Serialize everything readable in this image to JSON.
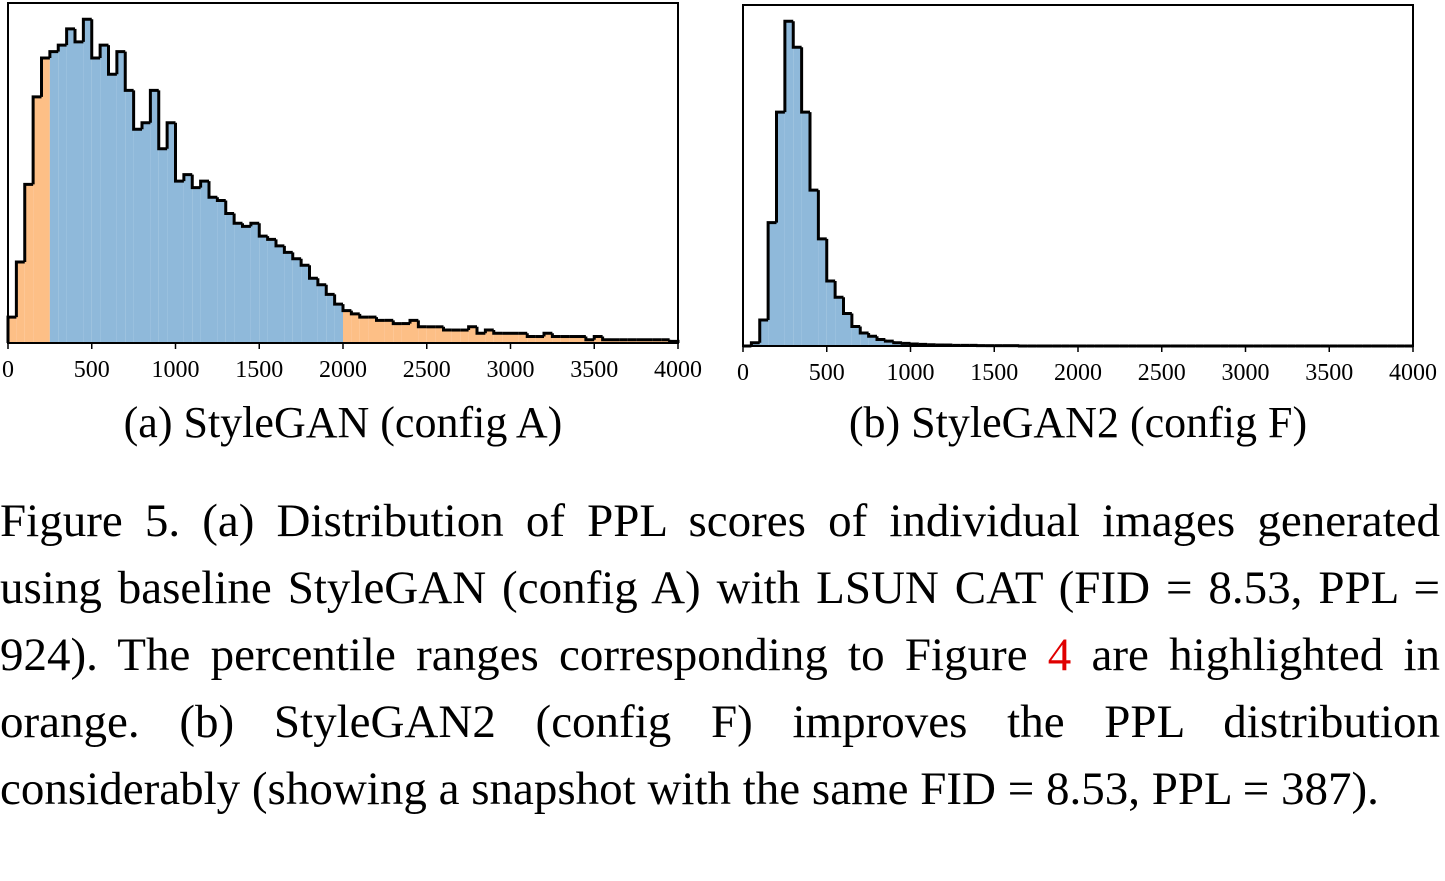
{
  "chart_data": [
    {
      "type": "histogram",
      "title": "(a) StyleGAN (config A)",
      "bins": [
        0,
        50,
        100,
        150,
        200,
        250,
        300,
        350,
        400,
        450,
        500,
        550,
        600,
        650,
        700,
        750,
        800,
        850,
        900,
        950,
        1000,
        1050,
        1100,
        1150,
        1200,
        1250,
        1300,
        1350,
        1400,
        1450,
        1500,
        1550,
        1600,
        1650,
        1700,
        1750,
        1800,
        1850,
        1900,
        1950,
        2000,
        2050,
        2100,
        2150,
        2200,
        2250,
        2300,
        2350,
        2400,
        2450,
        2500,
        2550,
        2600,
        2650,
        2700,
        2750,
        2800,
        2850,
        2900,
        2950,
        3000,
        3050,
        3100,
        3150,
        3200,
        3250,
        3300,
        3350,
        3400,
        3450,
        3500,
        3550,
        3600,
        3650,
        3700,
        3750,
        3800,
        3850,
        3900,
        3950,
        4000
      ],
      "values": [
        8,
        25,
        49,
        76,
        88,
        90,
        92,
        97,
        93,
        100,
        88,
        92,
        83,
        90,
        78,
        66,
        68,
        78,
        60,
        68,
        50,
        52,
        48,
        50,
        45,
        44,
        40,
        37,
        36,
        37,
        33,
        32,
        30,
        28,
        26,
        24,
        20,
        18,
        15,
        12,
        10,
        9,
        8,
        8,
        7,
        7,
        6,
        6,
        7,
        5,
        5,
        5,
        4,
        4,
        4,
        5,
        3,
        4,
        3,
        3,
        3,
        3,
        2,
        2,
        3,
        2,
        2,
        2,
        2,
        1,
        2,
        1,
        1,
        1,
        1,
        1,
        1,
        1,
        1,
        0.5
      ],
      "colors": [
        "#fdbf86",
        "#fdbf86",
        "#fdbf86",
        "#fdbf86",
        "#fdbf86",
        "#8fb9da",
        "#8fb9da",
        "#8fb9da",
        "#8fb9da",
        "#8fb9da",
        "#8fb9da",
        "#8fb9da",
        "#8fb9da",
        "#8fb9da",
        "#8fb9da",
        "#8fb9da",
        "#8fb9da",
        "#8fb9da",
        "#8fb9da",
        "#8fb9da",
        "#8fb9da",
        "#8fb9da",
        "#8fb9da",
        "#8fb9da",
        "#8fb9da",
        "#8fb9da",
        "#8fb9da",
        "#8fb9da",
        "#8fb9da",
        "#8fb9da",
        "#8fb9da",
        "#8fb9da",
        "#8fb9da",
        "#8fb9da",
        "#8fb9da",
        "#8fb9da",
        "#8fb9da",
        "#8fb9da",
        "#8fb9da",
        "#8fb9da",
        "#fdbf86",
        "#fdbf86",
        "#fdbf86",
        "#fdbf86",
        "#fdbf86",
        "#fdbf86",
        "#fdbf86",
        "#fdbf86",
        "#fdbf86",
        "#fdbf86",
        "#fdbf86",
        "#fdbf86",
        "#fdbf86",
        "#fdbf86",
        "#fdbf86",
        "#fdbf86",
        "#fdbf86",
        "#fdbf86",
        "#fdbf86",
        "#fdbf86",
        "#fdbf86",
        "#fdbf86",
        "#fdbf86",
        "#fdbf86",
        "#fdbf86",
        "#fdbf86",
        "#fdbf86",
        "#fdbf86",
        "#fdbf86",
        "#fdbf86",
        "#fdbf86",
        "#fdbf86",
        "#fdbf86",
        "#fdbf86",
        "#fdbf86",
        "#fdbf86",
        "#fdbf86",
        "#fdbf86",
        "#fdbf86",
        "#fdbf86"
      ],
      "xlim": [
        0,
        4000
      ],
      "xticks": [
        0,
        500,
        1000,
        1500,
        2000,
        2500,
        3000,
        3500,
        4000
      ],
      "ylim": [
        0,
        105
      ]
    },
    {
      "type": "histogram",
      "title": "(b) StyleGAN2 (config F)",
      "bins": [
        0,
        50,
        100,
        150,
        200,
        250,
        300,
        350,
        400,
        450,
        500,
        550,
        600,
        650,
        700,
        750,
        800,
        850,
        900,
        950,
        1000,
        1050,
        1100,
        1150,
        1200,
        1250,
        1300,
        1350,
        1400,
        1450,
        1500,
        1550,
        1600,
        1650,
        1700,
        1750,
        1800,
        1850,
        1900,
        1950,
        2000,
        2050,
        2100,
        2150,
        2200,
        2250,
        2300,
        2350,
        2400,
        2450,
        2500,
        2550,
        2600,
        2650,
        2700,
        2750,
        2800,
        2850,
        2900,
        2950,
        3000,
        3050,
        3100,
        3150,
        3200,
        3250,
        3300,
        3350,
        3400,
        3450,
        3500,
        3550,
        3600,
        3650,
        3700,
        3750,
        3800,
        3850,
        3900,
        3950,
        4000
      ],
      "values": [
        0,
        1,
        8,
        38,
        72,
        100,
        92,
        72,
        48,
        33,
        20,
        15,
        10,
        6,
        4,
        3,
        2,
        1.5,
        1,
        0.8,
        0.6,
        0.5,
        0.4,
        0.3,
        0.3,
        0.2,
        0.2,
        0.2,
        0.1,
        0.1,
        0.1,
        0.1,
        0.1,
        0,
        0,
        0,
        0,
        0,
        0,
        0,
        0,
        0,
        0,
        0,
        0,
        0,
        0,
        0,
        0,
        0,
        0,
        0,
        0,
        0,
        0,
        0,
        0,
        0,
        0,
        0,
        0,
        0,
        0,
        0,
        0,
        0,
        0,
        0,
        0,
        0,
        0,
        0,
        0,
        0,
        0,
        0,
        0,
        0,
        0,
        0
      ],
      "color": "#8fb9da",
      "xlim": [
        0,
        4000
      ],
      "xticks": [
        0,
        500,
        1000,
        1500,
        2000,
        2500,
        3000,
        3500,
        4000
      ],
      "ylim": [
        0,
        105
      ]
    }
  ],
  "caption": {
    "parts": [
      "Figure 5.   (a) Distribution of PPL scores of individual images generated using baseline StyleGAN (config A) with LSUN CAT (FID = 8.53, PPL = 924). The percentile ranges corresponding to Figure ",
      "4",
      " are highlighted in orange. (b) StyleGAN2 (config F) improves the PPL distribution considerably (showing a snapshot with the same FID = 8.53, PPL = 387)."
    ]
  }
}
